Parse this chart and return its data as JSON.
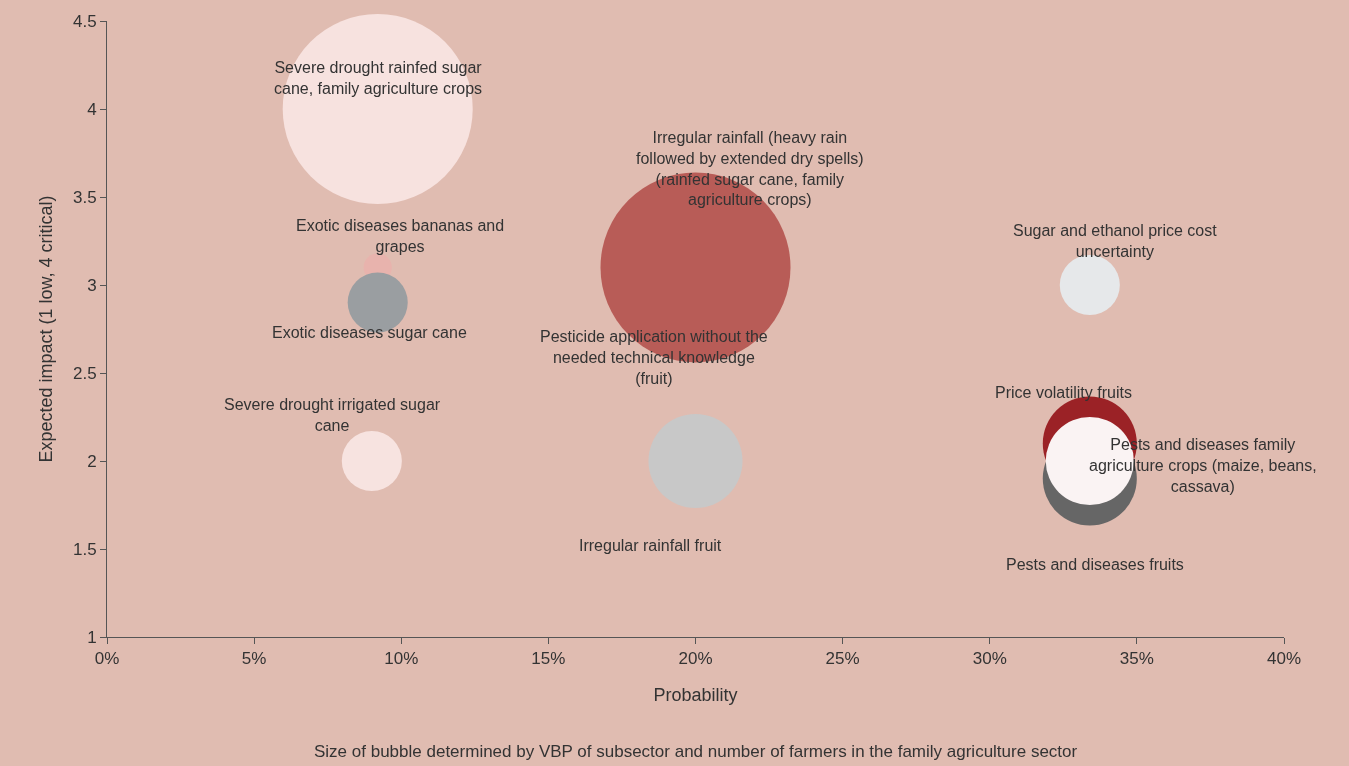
{
  "chart_data": {
    "type": "bubble",
    "xlabel": "Probability",
    "ylabel": "Expected impact (1 low, 4 critical)",
    "xlim": [
      0,
      40
    ],
    "xticks": [
      {
        "value": 0,
        "label": "0%"
      },
      {
        "value": 5,
        "label": "5%"
      },
      {
        "value": 10,
        "label": "10%"
      },
      {
        "value": 15,
        "label": "15%"
      },
      {
        "value": 20,
        "label": "20%"
      },
      {
        "value": 25,
        "label": "25%"
      },
      {
        "value": 30,
        "label": "30%"
      },
      {
        "value": 35,
        "label": "35%"
      },
      {
        "value": 40,
        "label": "40%"
      }
    ],
    "ylim": [
      1,
      4.5
    ],
    "yticks": [
      1,
      1.5,
      2,
      2.5,
      3,
      3.5,
      4,
      4.5
    ],
    "grid": false,
    "legend": false,
    "series": [
      {
        "name": "Severe drought rainfed sugar\ncane, family agriculture crops",
        "color": "#f7e2df",
        "x": [
          9.2
        ],
        "values": [
          4.0
        ],
        "sizes": [
          1
        ]
      },
      {
        "name": "Exotic diseases bananas and\ngrapes",
        "color": "#e8b3ad",
        "x": [
          9.2
        ],
        "values": [
          3.1
        ],
        "sizes": [
          0.022
        ]
      },
      {
        "name": "Exotic diseases sugar cane",
        "color": "#9a9ea1",
        "x": [
          9.2
        ],
        "values": [
          2.9
        ],
        "sizes": [
          0.1
        ]
      },
      {
        "name": "Severe drought irrigated sugar\ncane",
        "color": "#f7e3e0",
        "x": [
          9.0
        ],
        "values": [
          2.0
        ],
        "sizes": [
          0.1
        ]
      },
      {
        "name": "Irregular rainfall (heavy rain\nfollowed by extended dry spells)\n(rainfed sugar cane, family\nagriculture crops)",
        "color": "#b85c57",
        "x": [
          20.0
        ],
        "values": [
          3.1
        ],
        "sizes": [
          1
        ]
      },
      {
        "name": "Irregular rainfall fruit",
        "color": "#c8c8c8",
        "x": [
          20.0
        ],
        "values": [
          2.0
        ],
        "sizes": [
          0.245
        ]
      },
      {
        "name": "Sugar and ethanol price cost\nuncertainty",
        "color": "#e6e8ea",
        "x": [
          33.4
        ],
        "values": [
          3.0
        ],
        "sizes": [
          0.1
        ]
      },
      {
        "name": "Price volatility fruits",
        "color": "#9b2226",
        "x": [
          33.4
        ],
        "values": [
          2.1
        ],
        "sizes": [
          0.245
        ]
      },
      {
        "name": "Pests and diseases fruits",
        "color": "#666666",
        "x": [
          33.4
        ],
        "values": [
          1.9
        ],
        "sizes": [
          0.245
        ]
      },
      {
        "name": "Pests and diseases family\nagriculture crops (maize, beans,\ncassava)",
        "color": "#faf3f3",
        "x": [
          33.4
        ],
        "values": [
          2.0
        ],
        "sizes": [
          0.215
        ]
      }
    ],
    "annotations": [
      "Pesticide application without the\nneeded technical knowledge\n(fruit)",
      "Size of bubble determined by VBP of subsector and number of farmers in the family agriculture sector"
    ]
  }
}
